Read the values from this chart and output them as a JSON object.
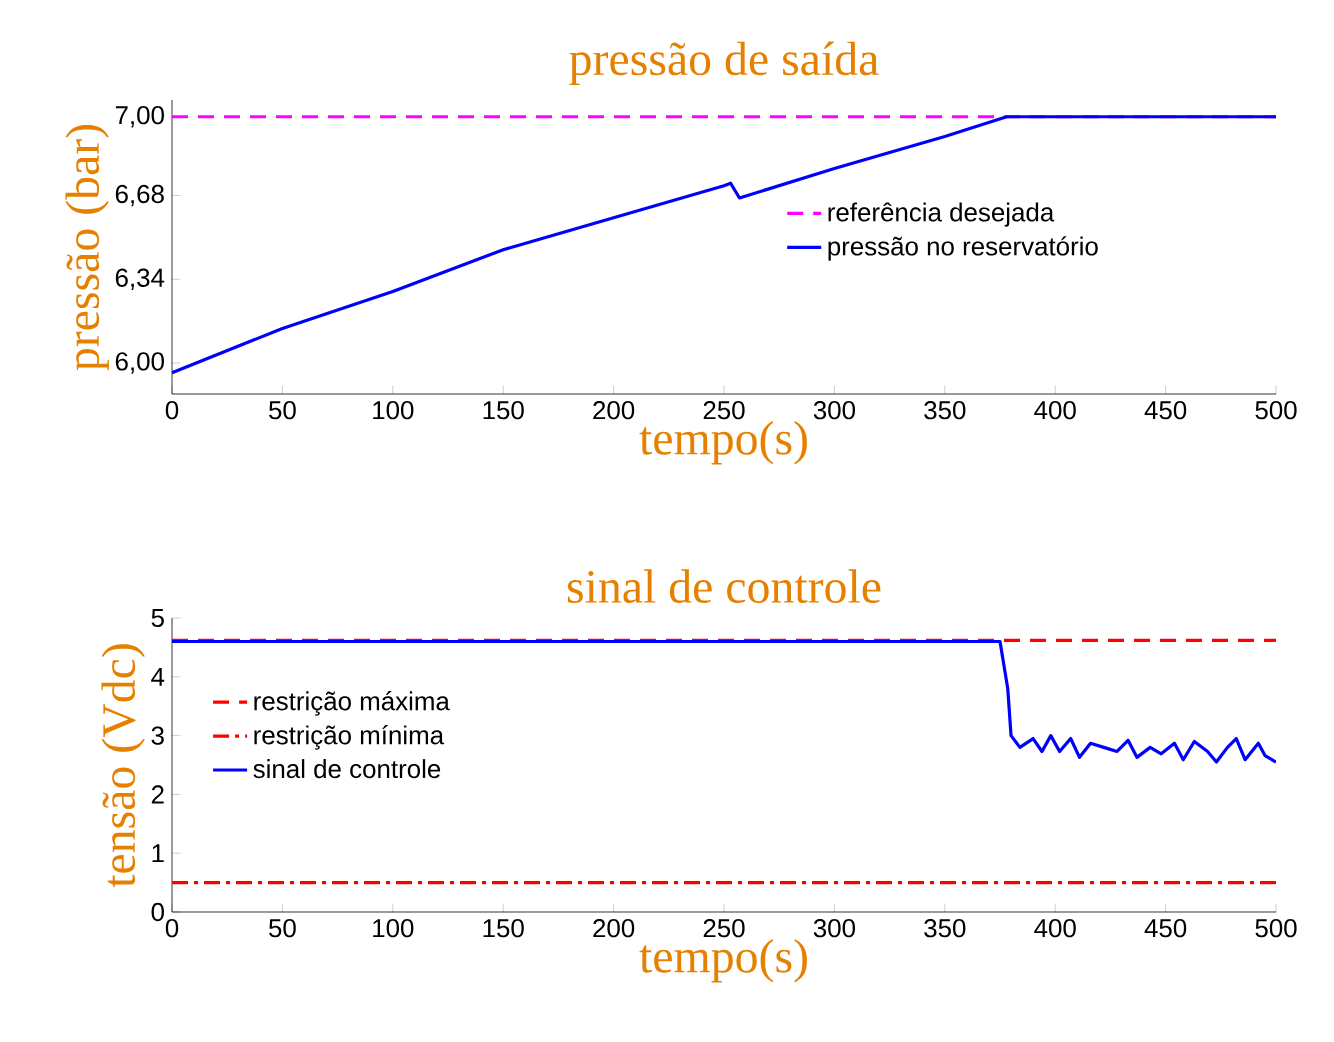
{
  "chart_data": [
    {
      "type": "line",
      "title": "pressão de saída",
      "xlabel": "tempo(s)",
      "ylabel": "pressão (bar)",
      "xlim": [
        0,
        500
      ],
      "ylim": [
        5.874,
        7.068
      ],
      "xticks": [
        0,
        50,
        100,
        150,
        200,
        250,
        300,
        350,
        400,
        450,
        500
      ],
      "yticks": [
        {
          "value": 6.0,
          "label": "6,00"
        },
        {
          "value": 6.34,
          "label": "6,34"
        },
        {
          "value": 6.68,
          "label": "6,68"
        },
        {
          "value": 7.0,
          "label": "7,00"
        }
      ],
      "grid": false,
      "legend": "right",
      "marker": "none",
      "series": [
        {
          "name": "referência desejada",
          "color": "#ff00ff",
          "line_style": "dashed",
          "x": [
            0,
            500
          ],
          "values": [
            7.0,
            7.0
          ]
        },
        {
          "name": "pressão no reservatório",
          "color": "#0000ff",
          "line_style": "solid",
          "x": [
            0,
            50,
            100,
            150,
            200,
            250,
            253,
            257,
            300,
            350,
            378,
            500
          ],
          "values": [
            5.96,
            6.14,
            6.29,
            6.46,
            6.59,
            6.72,
            6.73,
            6.67,
            6.79,
            6.92,
            7.0,
            7.0
          ]
        }
      ]
    },
    {
      "type": "line",
      "title": "sinal de controle",
      "xlabel": "tempo(s)",
      "ylabel": "tensão (Vdc)",
      "xlim": [
        0,
        500
      ],
      "ylim": [
        0,
        5
      ],
      "xticks": [
        0,
        50,
        100,
        150,
        200,
        250,
        300,
        350,
        400,
        450,
        500
      ],
      "yticks": [
        0,
        1,
        2,
        3,
        4,
        5
      ],
      "grid": false,
      "legend": "left",
      "marker": "none",
      "series": [
        {
          "name": "restrição máxima",
          "color": "#ff0000",
          "line_style": "dashed",
          "x": [
            0,
            500
          ],
          "values": [
            4.62,
            4.62
          ]
        },
        {
          "name": "restrição mínima",
          "color": "#ff0000",
          "line_style": "dashdot",
          "x": [
            0,
            500
          ],
          "values": [
            0.5,
            0.5
          ]
        },
        {
          "name": "sinal de controle",
          "color": "#0000ff",
          "line_style": "solid",
          "x": [
            0,
            375,
            378.5,
            380,
            384,
            390,
            394,
            398,
            402,
            407,
            411,
            416,
            422,
            428,
            433,
            437,
            443,
            448,
            454,
            458,
            463,
            469,
            473,
            478,
            482,
            486,
            492,
            495,
            500
          ],
          "values": [
            4.6,
            4.6,
            3.8,
            3.0,
            2.8,
            2.95,
            2.73,
            3.0,
            2.73,
            2.95,
            2.63,
            2.87,
            2.8,
            2.73,
            2.92,
            2.63,
            2.8,
            2.69,
            2.87,
            2.59,
            2.9,
            2.73,
            2.55,
            2.8,
            2.95,
            2.59,
            2.87,
            2.66,
            2.55
          ]
        }
      ]
    }
  ]
}
